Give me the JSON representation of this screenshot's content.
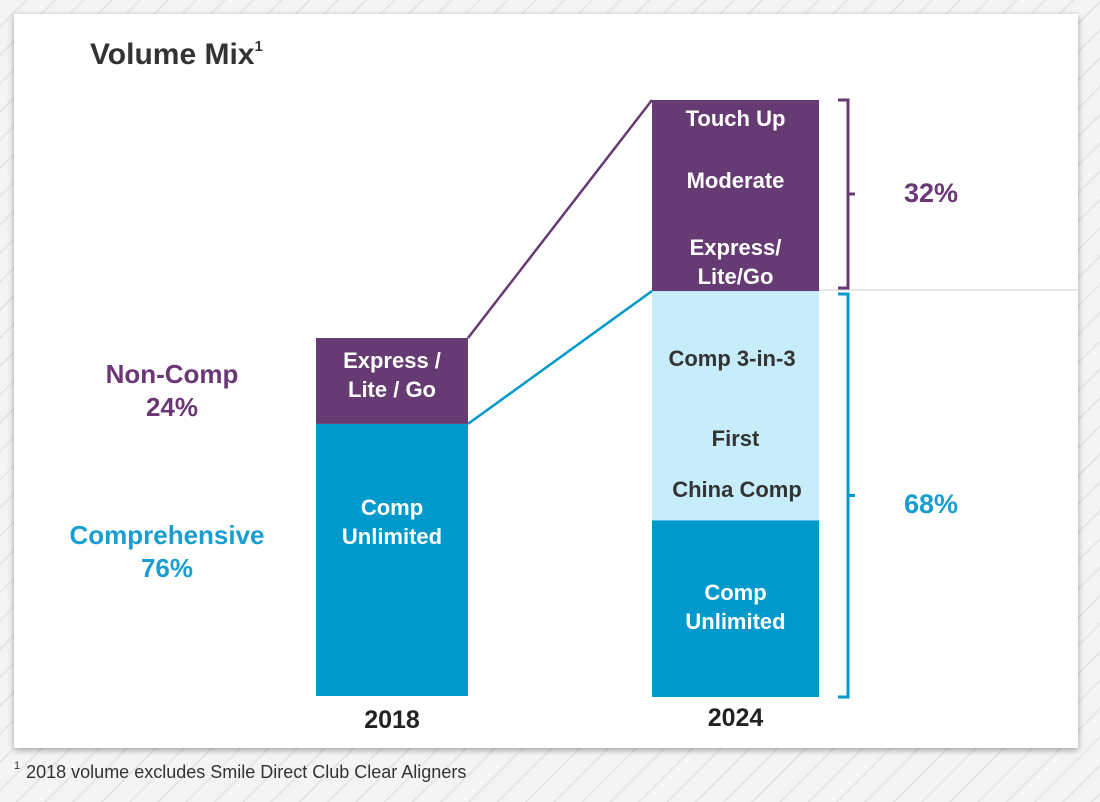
{
  "title": {
    "text": "Volume Mix",
    "sup": "1"
  },
  "footnote": {
    "sup": "1",
    "text": "2018 volume excludes Smile Direct Club Clear Aligners"
  },
  "colors": {
    "non_comp": "#663a72",
    "comprehensive": "#0099cc",
    "comp_light": "#c7edfb",
    "group_comprehensive_text": "#1a9ed1",
    "group_non_comp_text": "#6b3776"
  },
  "chart_data": {
    "type": "bar",
    "stacked": true,
    "categories": [
      "2018",
      "2024"
    ],
    "unit": "%",
    "bars": [
      {
        "category": "2018",
        "segments": [
          {
            "label": "Comp Unlimited",
            "value": 76,
            "group": "comprehensive"
          },
          {
            "label": "Express / Lite / Go",
            "value": 24,
            "group": "non_comp"
          }
        ]
      },
      {
        "category": "2024",
        "segments": [
          {
            "label": "Comp Unlimited",
            "value": 68,
            "group": "comprehensive",
            "sub_items": [
              "Comp Unlimited",
              "Comp 3-in-3",
              "First",
              "China Comp"
            ]
          },
          {
            "label": "Non-Comp",
            "value": 32,
            "group": "non_comp",
            "sub_items": [
              "Touch Up",
              "Moderate",
              "Express/ Lite/Go"
            ]
          }
        ]
      }
    ],
    "group_labels": [
      {
        "name": "Non-Comp",
        "value": "24%"
      },
      {
        "name": "Comprehensive",
        "value": "76%"
      }
    ],
    "bracket_labels": [
      {
        "value": "32%"
      },
      {
        "value": "68%"
      }
    ]
  },
  "labels": {
    "bar2018_top_line1": "Express /",
    "bar2018_top_line2": "Lite / Go",
    "bar2018_bottom_line1": "Comp",
    "bar2018_bottom_line2": "Unlimited",
    "bar2024_touch_up": "Touch Up",
    "bar2024_moderate": "Moderate",
    "bar2024_express_line1": "Express/",
    "bar2024_express_line2": "Lite/Go",
    "bar2024_comp3": "Comp 3-in-3",
    "bar2024_first": "First",
    "bar2024_china": "China Comp",
    "bar2024_unlimited_line1": "Comp",
    "bar2024_unlimited_line2": "Unlimited",
    "noncomp_name": "Non-Comp",
    "noncomp_pct": "24%",
    "comp_name": "Comprehensive",
    "comp_pct": "76%",
    "pct32": "32%",
    "pct68": "68%",
    "x2018": "2018",
    "x2024": "2024"
  }
}
